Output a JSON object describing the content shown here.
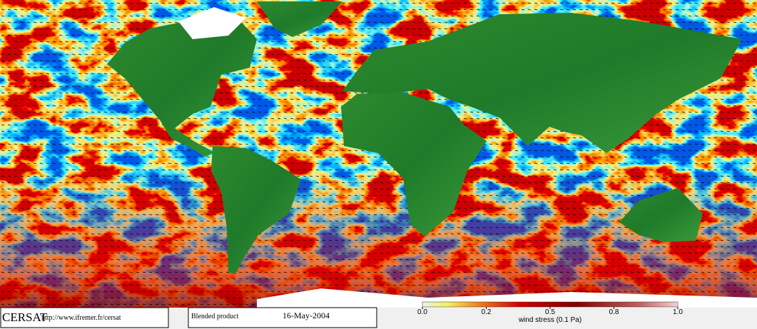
{
  "footer": {
    "logo": "CERSAT",
    "url": "http://www.ifremer.fr/cersat",
    "product": "Blended product",
    "date": "16-May-2004"
  },
  "colorbar": {
    "label": "wind stress (0.1 Pa)",
    "ticks": [
      {
        "value": 0,
        "label": "0.0"
      },
      {
        "value": 0.2,
        "label": "0.2"
      },
      {
        "value": 0.5,
        "label": "0.5"
      },
      {
        "value": 0.8,
        "label": "0.8"
      },
      {
        "value": 1,
        "label": "1.0"
      }
    ]
  }
}
